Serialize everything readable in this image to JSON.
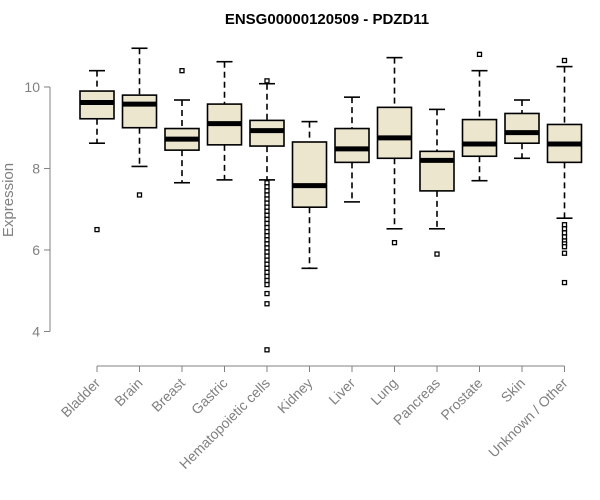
{
  "chart_data": {
    "type": "boxplot",
    "title": "ENSG00000120509 - PDZD11",
    "xlabel": "",
    "ylabel": "Expression",
    "ylim": [
      3.3,
      11.3
    ],
    "yticks": [
      4,
      6,
      8,
      10
    ],
    "grid": false,
    "legend": "none",
    "colors": {
      "box_fill": "#ede6cf",
      "box_stroke": "#000000",
      "axis": "#808080"
    },
    "categories": [
      "Bladder",
      "Brain",
      "Breast",
      "Gastric",
      "Hematopoietic cells",
      "Kidney",
      "Liver",
      "Lung",
      "Pancreas",
      "Prostate",
      "Skin",
      "Unknown / Other"
    ],
    "boxes": [
      {
        "category": "Bladder",
        "whisker_low": 8.62,
        "q1": 9.22,
        "median": 9.62,
        "q3": 9.9,
        "whisker_high": 10.4,
        "outliers": [
          6.5
        ]
      },
      {
        "category": "Brain",
        "whisker_low": 8.05,
        "q1": 9.0,
        "median": 9.58,
        "q3": 9.8,
        "whisker_high": 10.95,
        "outliers": [
          7.35
        ]
      },
      {
        "category": "Breast",
        "whisker_low": 7.65,
        "q1": 8.45,
        "median": 8.72,
        "q3": 8.98,
        "whisker_high": 9.68,
        "outliers": [
          10.4
        ]
      },
      {
        "category": "Gastric",
        "whisker_low": 7.72,
        "q1": 8.58,
        "median": 9.1,
        "q3": 9.58,
        "whisker_high": 10.62,
        "outliers": []
      },
      {
        "category": "Hematopoietic cells",
        "whisker_low": 7.72,
        "q1": 8.55,
        "median": 8.93,
        "q3": 9.18,
        "whisker_high": 10.08,
        "outliers": [
          10.15,
          7.65,
          7.55,
          7.45,
          7.35,
          7.25,
          7.15,
          7.05,
          6.95,
          6.85,
          6.75,
          6.65,
          6.55,
          6.45,
          6.35,
          6.25,
          6.15,
          6.05,
          5.95,
          5.85,
          5.75,
          5.65,
          5.55,
          5.45,
          5.35,
          5.25,
          5.15,
          4.93,
          4.68,
          3.55
        ]
      },
      {
        "category": "Kidney",
        "whisker_low": 5.55,
        "q1": 7.05,
        "median": 7.58,
        "q3": 8.65,
        "whisker_high": 9.15,
        "outliers": []
      },
      {
        "category": "Liver",
        "whisker_low": 7.18,
        "q1": 8.15,
        "median": 8.48,
        "q3": 8.98,
        "whisker_high": 9.75,
        "outliers": []
      },
      {
        "category": "Lung",
        "whisker_low": 6.52,
        "q1": 8.25,
        "median": 8.75,
        "q3": 9.5,
        "whisker_high": 10.72,
        "outliers": [
          6.18
        ]
      },
      {
        "category": "Pancreas",
        "whisker_low": 6.52,
        "q1": 7.45,
        "median": 8.2,
        "q3": 8.42,
        "whisker_high": 9.45,
        "outliers": [
          5.9
        ]
      },
      {
        "category": "Prostate",
        "whisker_low": 7.7,
        "q1": 8.3,
        "median": 8.6,
        "q3": 9.2,
        "whisker_high": 10.4,
        "outliers": [
          10.8
        ]
      },
      {
        "category": "Skin",
        "whisker_low": 8.25,
        "q1": 8.62,
        "median": 8.88,
        "q3": 9.35,
        "whisker_high": 9.68,
        "outliers": []
      },
      {
        "category": "Unknown / Other",
        "whisker_low": 6.78,
        "q1": 8.15,
        "median": 8.6,
        "q3": 9.08,
        "whisker_high": 10.5,
        "outliers": [
          10.65,
          6.62,
          6.52,
          6.42,
          6.32,
          6.22,
          6.15,
          6.08,
          5.92,
          5.2
        ]
      }
    ]
  }
}
